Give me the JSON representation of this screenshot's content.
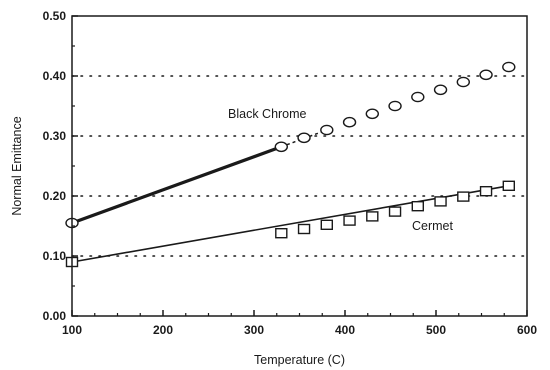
{
  "chart_data": {
    "type": "line",
    "xlabel": "Temperature (C)",
    "ylabel": "Normal Emittance",
    "xlim": [
      100,
      600
    ],
    "ylim": [
      0,
      0.5
    ],
    "x_ticks": [
      "100",
      "200",
      "300",
      "400",
      "500",
      "600"
    ],
    "y_ticks": [
      "0.00",
      "0.10",
      "0.20",
      "0.30",
      "0.40",
      "0.50"
    ],
    "grid": "dotted horizontal lines at 0.10, 0.20, 0.30, 0.40",
    "series": [
      {
        "name": "Black Chrome",
        "marker": "circle",
        "points": [
          [
            100,
            0.155
          ],
          [
            330,
            0.282
          ],
          [
            355,
            0.297
          ],
          [
            380,
            0.31
          ],
          [
            405,
            0.323
          ],
          [
            430,
            0.337
          ],
          [
            455,
            0.35
          ],
          [
            480,
            0.365
          ],
          [
            505,
            0.377
          ],
          [
            530,
            0.39
          ],
          [
            555,
            0.402
          ],
          [
            580,
            0.415
          ]
        ],
        "fit_line": [
          [
            100,
            0.155
          ],
          [
            330,
            0.282
          ]
        ],
        "fit_dashed": [
          [
            330,
            0.282
          ],
          [
            380,
            0.31
          ]
        ]
      },
      {
        "name": "Cermet",
        "marker": "square",
        "points": [
          [
            100,
            0.09
          ],
          [
            330,
            0.138
          ],
          [
            355,
            0.145
          ],
          [
            380,
            0.152
          ],
          [
            405,
            0.159
          ],
          [
            430,
            0.166
          ],
          [
            455,
            0.174
          ],
          [
            480,
            0.183
          ],
          [
            505,
            0.191
          ],
          [
            530,
            0.199
          ],
          [
            555,
            0.208
          ],
          [
            580,
            0.217
          ]
        ],
        "fit_line": [
          [
            100,
            0.09
          ],
          [
            580,
            0.217
          ]
        ]
      }
    ]
  },
  "colors": {
    "ink": "#1a1a1a",
    "background": "#ffffff"
  }
}
